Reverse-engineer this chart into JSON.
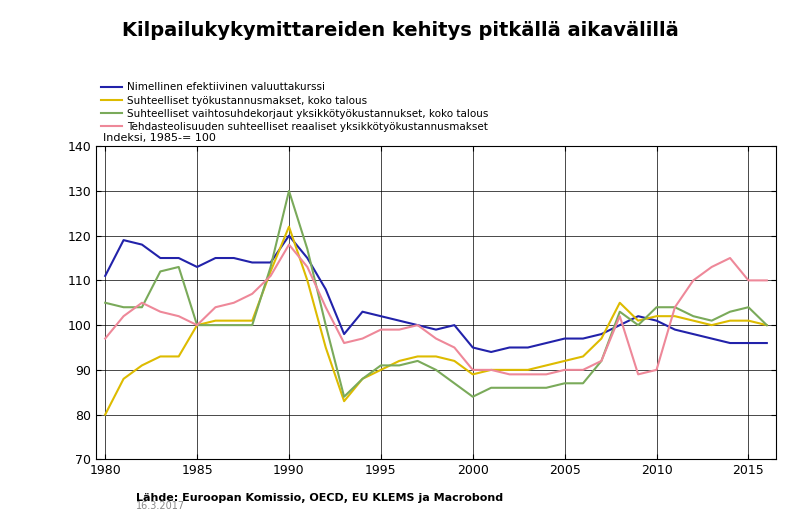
{
  "title": "Kilpailukykymittareiden kehitys pitkällä aikavälillä",
  "ylabel": "Indeksi, 1985-= 100",
  "source": "Lähde: Euroopan Komissio, OECD, EU KLEMS ja Macrobond",
  "date": "16.3.2017",
  "legend": [
    "Nimellinen efektiivinen valuuttakurssi",
    "Suhteelliset työkustannusmakset, koko talous",
    "Suhteelliset vaihtosuhdekorjaut yksikkötyökustannukset, koko talous",
    "Tehdasteolisuuden suhteelliset reaaliset yksikkötyökustannusmakset"
  ],
  "colors": [
    "#2222aa",
    "#ddbb00",
    "#7aaa5a",
    "#ee8899"
  ],
  "years": [
    1980,
    1981,
    1982,
    1983,
    1984,
    1985,
    1986,
    1987,
    1988,
    1989,
    1990,
    1991,
    1992,
    1993,
    1994,
    1995,
    1996,
    1997,
    1998,
    1999,
    2000,
    2001,
    2002,
    2003,
    2004,
    2005,
    2006,
    2007,
    2008,
    2009,
    2010,
    2011,
    2012,
    2013,
    2014,
    2015,
    2016
  ],
  "series": {
    "blue": [
      111,
      119,
      118,
      115,
      115,
      113,
      115,
      115,
      114,
      114,
      120,
      115,
      108,
      98,
      103,
      102,
      101,
      100,
      99,
      100,
      95,
      94,
      95,
      95,
      96,
      97,
      97,
      98,
      100,
      102,
      101,
      99,
      98,
      97,
      96,
      96,
      96
    ],
    "yellow": [
      80,
      88,
      91,
      93,
      93,
      100,
      101,
      101,
      101,
      112,
      122,
      110,
      95,
      83,
      88,
      90,
      92,
      93,
      93,
      92,
      89,
      90,
      90,
      90,
      91,
      92,
      93,
      97,
      105,
      101,
      102,
      102,
      101,
      100,
      101,
      101,
      100
    ],
    "green": [
      105,
      104,
      104,
      112,
      113,
      100,
      100,
      100,
      100,
      113,
      130,
      117,
      100,
      84,
      88,
      91,
      91,
      92,
      90,
      87,
      84,
      86,
      86,
      86,
      86,
      87,
      87,
      92,
      103,
      100,
      104,
      104,
      102,
      101,
      103,
      104,
      100
    ],
    "pink": [
      97,
      102,
      105,
      103,
      102,
      100,
      104,
      105,
      107,
      111,
      118,
      113,
      104,
      96,
      97,
      99,
      99,
      100,
      97,
      95,
      90,
      90,
      89,
      89,
      89,
      90,
      90,
      92,
      102,
      89,
      90,
      104,
      110,
      113,
      115,
      110,
      110
    ]
  },
  "ylim": [
    70,
    140
  ],
  "yticks": [
    70,
    80,
    90,
    100,
    110,
    120,
    130,
    140
  ],
  "xlim": [
    1979.5,
    2016.5
  ],
  "xticks": [
    1980,
    1985,
    1990,
    1995,
    2000,
    2005,
    2010,
    2015
  ]
}
